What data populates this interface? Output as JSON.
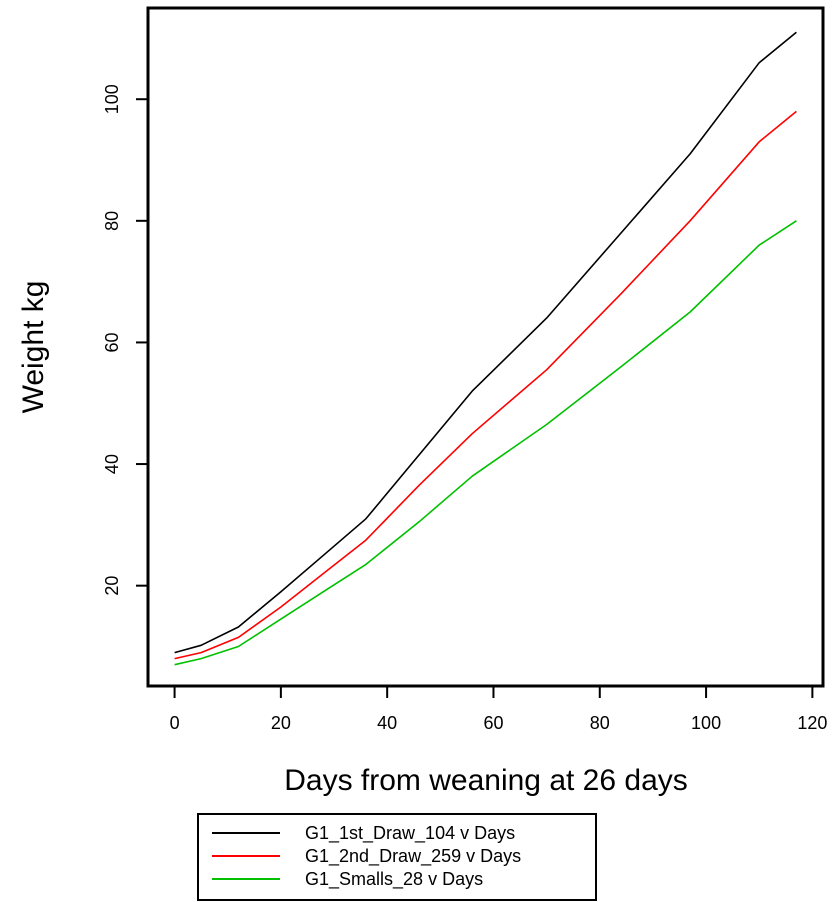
{
  "chart_data": {
    "type": "line",
    "title": "",
    "xlabel": "Days from weaning at 26 days",
    "ylabel": "Weight kg",
    "xlim": [
      -5,
      122
    ],
    "ylim": [
      3.5,
      115
    ],
    "x_ticks": [
      0,
      20,
      40,
      60,
      80,
      100,
      120
    ],
    "y_ticks": [
      20,
      40,
      60,
      80,
      100
    ],
    "grid": false,
    "legend_position": "bottom-left",
    "series": [
      {
        "name": "G1_1st_Draw_104 v Days",
        "color": "#000000",
        "x": [
          0,
          5,
          12,
          20,
          28,
          36,
          46,
          56,
          70,
          84,
          97,
          110,
          117
        ],
        "y": [
          9.0,
          10.2,
          13.2,
          19.0,
          25.0,
          31.0,
          41.5,
          52.0,
          64.0,
          78.0,
          91.0,
          106.0,
          111.0
        ]
      },
      {
        "name": "G1_2nd_Draw_259 v Days",
        "color": "#ff0000",
        "x": [
          0,
          5,
          12,
          20,
          28,
          36,
          46,
          56,
          70,
          84,
          97,
          110,
          117
        ],
        "y": [
          8.0,
          9.0,
          11.5,
          16.5,
          22.0,
          27.5,
          36.5,
          45.0,
          55.5,
          68.0,
          80.0,
          93.0,
          98.0
        ]
      },
      {
        "name": "G1_Smalls_28 v Days",
        "color": "#00c000",
        "x": [
          0,
          5,
          12,
          20,
          28,
          36,
          46,
          56,
          70,
          84,
          97,
          110,
          117
        ],
        "y": [
          7.0,
          8.0,
          10.0,
          14.5,
          19.0,
          23.5,
          30.5,
          38.0,
          46.5,
          56.0,
          65.0,
          76.0,
          80.0
        ]
      }
    ]
  }
}
